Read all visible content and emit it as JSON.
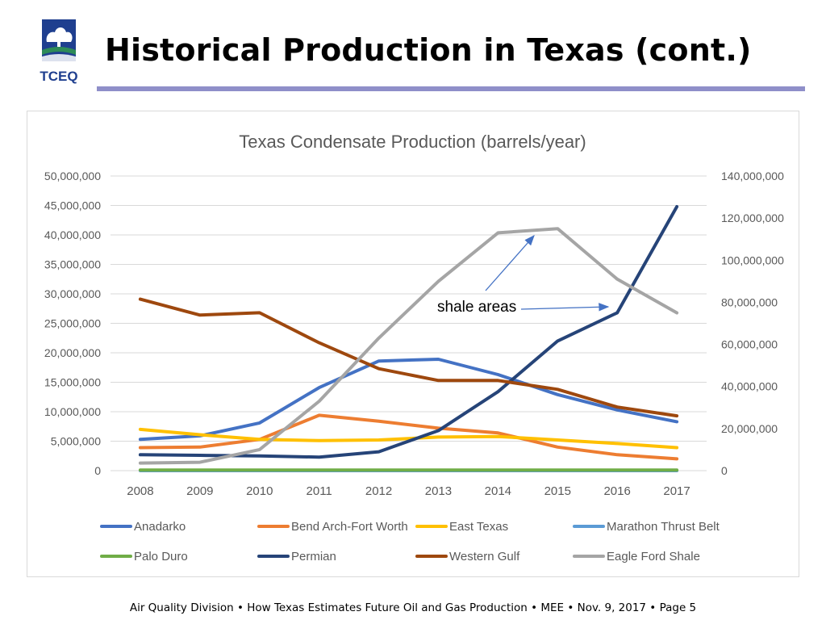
{
  "slide": {
    "title": "Historical Production in Texas (cont.)",
    "logo_text": "TCEQ",
    "footer": "Air Quality Division • How Texas Estimates Future Oil and Gas Production  • MEE •  Nov. 9, 2017  •   Page 5"
  },
  "colors": {
    "title_rule": "#8f8fc9",
    "logo_blue": "#1f3f8f",
    "logo_green": "#2e8b57"
  },
  "chart_data": {
    "type": "line",
    "title": "Texas Condensate Production (barrels/year)",
    "x": [
      "2008",
      "2009",
      "2010",
      "2011",
      "2012",
      "2013",
      "2014",
      "2015",
      "2016",
      "2017"
    ],
    "y_left": {
      "range": [
        0,
        50000000
      ],
      "ticks": [
        "0",
        "5,000,000",
        "10,000,000",
        "15,000,000",
        "20,000,000",
        "25,000,000",
        "30,000,000",
        "35,000,000",
        "40,000,000",
        "45,000,000",
        "50,000,000"
      ]
    },
    "y_right": {
      "range": [
        0,
        140000000
      ],
      "ticks": [
        "0",
        "20,000,000",
        "40,000,000",
        "60,000,000",
        "80,000,000",
        "100,000,000",
        "120,000,000",
        "140,000,000"
      ]
    },
    "grid": true,
    "legend_position": "bottom",
    "series": [
      {
        "name": "Anadarko",
        "color": "#4472c4",
        "axis": "left",
        "values": [
          5300000,
          5900000,
          8100000,
          14100000,
          18600000,
          18900000,
          16300000,
          12900000,
          10300000,
          8300000
        ]
      },
      {
        "name": "Bend Arch-Fort Worth",
        "color": "#ed7d31",
        "axis": "left",
        "values": [
          3900000,
          4000000,
          5300000,
          9400000,
          8400000,
          7200000,
          6400000,
          4000000,
          2700000,
          2000000
        ]
      },
      {
        "name": "East Texas",
        "color": "#ffc000",
        "axis": "left",
        "values": [
          7000000,
          6100000,
          5300000,
          5100000,
          5200000,
          5700000,
          5800000,
          5200000,
          4600000,
          3900000
        ]
      },
      {
        "name": "Marathon Thrust Belt",
        "color": "#5b9bd5",
        "axis": "left",
        "values": [
          0,
          0,
          0,
          0,
          0,
          0,
          0,
          0,
          0,
          0
        ]
      },
      {
        "name": "Palo Duro",
        "color": "#70ad47",
        "axis": "left",
        "values": [
          100000,
          100000,
          100000,
          100000,
          100000,
          100000,
          100000,
          100000,
          100000,
          100000
        ]
      },
      {
        "name": "Permian",
        "color": "#264478",
        "axis": "left",
        "values": [
          2700000,
          2600000,
          2500000,
          2300000,
          3200000,
          6800000,
          13400000,
          22000000,
          26800000,
          44800000
        ]
      },
      {
        "name": "Western Gulf",
        "color": "#9e480e",
        "axis": "left",
        "values": [
          29100000,
          26400000,
          26800000,
          21700000,
          17300000,
          15300000,
          15300000,
          13800000,
          10800000,
          9300000
        ]
      },
      {
        "name": "Eagle Ford Shale",
        "color": "#a5a5a5",
        "axis": "right",
        "values": [
          3600000,
          4000000,
          10000000,
          33000000,
          63000000,
          90000000,
          113000000,
          115000000,
          91000000,
          75000000
        ]
      }
    ],
    "annotation": {
      "text": "shale areas"
    }
  }
}
